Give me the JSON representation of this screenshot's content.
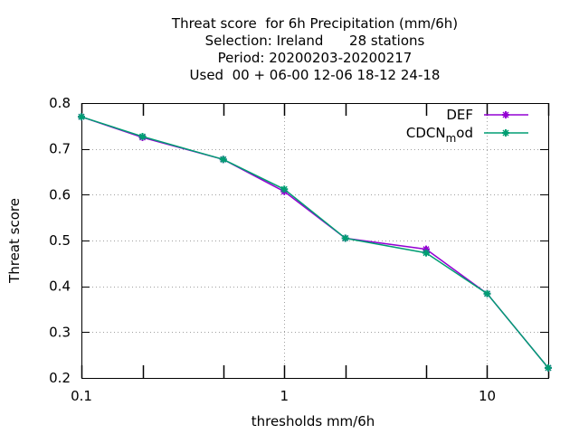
{
  "chart_data": {
    "type": "line",
    "title_lines": [
      "Threat score  for 6h Precipitation (mm/6h)",
      "Selection: Ireland      28 stations",
      "Period: 20200203-20200217",
      "Used  00 + 06-00 12-06 18-12 24-18"
    ],
    "xlabel": "thresholds mm/6h",
    "ylabel": "Threat score",
    "xscale": "log",
    "xlim": [
      0.1,
      20
    ],
    "ylim": [
      0.2,
      0.8
    ],
    "grid": true,
    "legend_position": "top-right",
    "x_ticks": [
      {
        "value": 0.1,
        "label": "0.1"
      },
      {
        "value": 1,
        "label": "1"
      },
      {
        "value": 10,
        "label": "10"
      }
    ],
    "x_minor_ticks": [
      0.2,
      0.5,
      2,
      5,
      20
    ],
    "y_ticks": [
      {
        "value": 0.2,
        "label": "0.2"
      },
      {
        "value": 0.3,
        "label": "0.3"
      },
      {
        "value": 0.4,
        "label": "0.4"
      },
      {
        "value": 0.5,
        "label": "0.5"
      },
      {
        "value": 0.6,
        "label": "0.6"
      },
      {
        "value": 0.7,
        "label": "0.7"
      },
      {
        "value": 0.8,
        "label": "0.8"
      }
    ],
    "x": [
      0.1,
      0.2,
      0.5,
      1,
      2,
      5,
      10,
      20
    ],
    "series": [
      {
        "name": "DEF",
        "name_sub": "",
        "name_tail": "",
        "color": "#9400d3",
        "values": [
          0.77,
          0.725,
          0.677,
          0.607,
          0.505,
          0.481,
          0.384,
          0.222
        ]
      },
      {
        "name": "CDCN",
        "name_sub": "m",
        "name_tail": "od",
        "color": "#009e73",
        "values": [
          0.77,
          0.727,
          0.677,
          0.612,
          0.505,
          0.473,
          0.384,
          0.222
        ]
      }
    ]
  }
}
